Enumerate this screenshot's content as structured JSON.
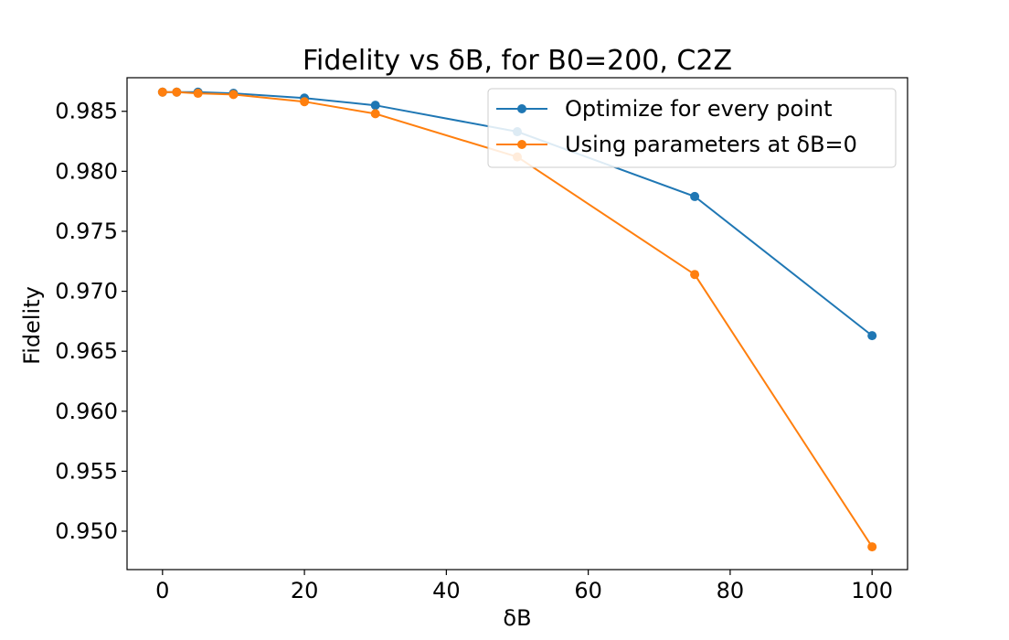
{
  "chart_data": {
    "type": "line",
    "title": "Fidelity vs δB, for B0=200, C2Z",
    "xlabel": "δB",
    "ylabel": "Fidelity",
    "xlim": [
      -5,
      105
    ],
    "ylim": [
      0.9468,
      0.9878
    ],
    "xticks": [
      0,
      20,
      40,
      60,
      80,
      100
    ],
    "xtick_labels": [
      "0",
      "20",
      "40",
      "60",
      "80",
      "100"
    ],
    "yticks": [
      0.95,
      0.955,
      0.96,
      0.965,
      0.97,
      0.975,
      0.98,
      0.985
    ],
    "ytick_labels": [
      "0.950",
      "0.955",
      "0.960",
      "0.965",
      "0.970",
      "0.975",
      "0.980",
      "0.985"
    ],
    "grid": false,
    "legend_position": "top-right",
    "x": [
      0,
      2,
      5,
      10,
      20,
      30,
      50,
      75,
      100
    ],
    "series": [
      {
        "name": "Optimize for every point",
        "color": "#1f77b4",
        "values": [
          0.9866,
          0.9866,
          0.9866,
          0.9865,
          0.9861,
          0.9855,
          0.9833,
          0.9779,
          0.9663
        ]
      },
      {
        "name": "Using parameters at δB=0",
        "color": "#ff7f0e",
        "values": [
          0.9866,
          0.9866,
          0.9865,
          0.9864,
          0.9858,
          0.9848,
          0.9812,
          0.9714,
          0.9487
        ]
      }
    ]
  }
}
